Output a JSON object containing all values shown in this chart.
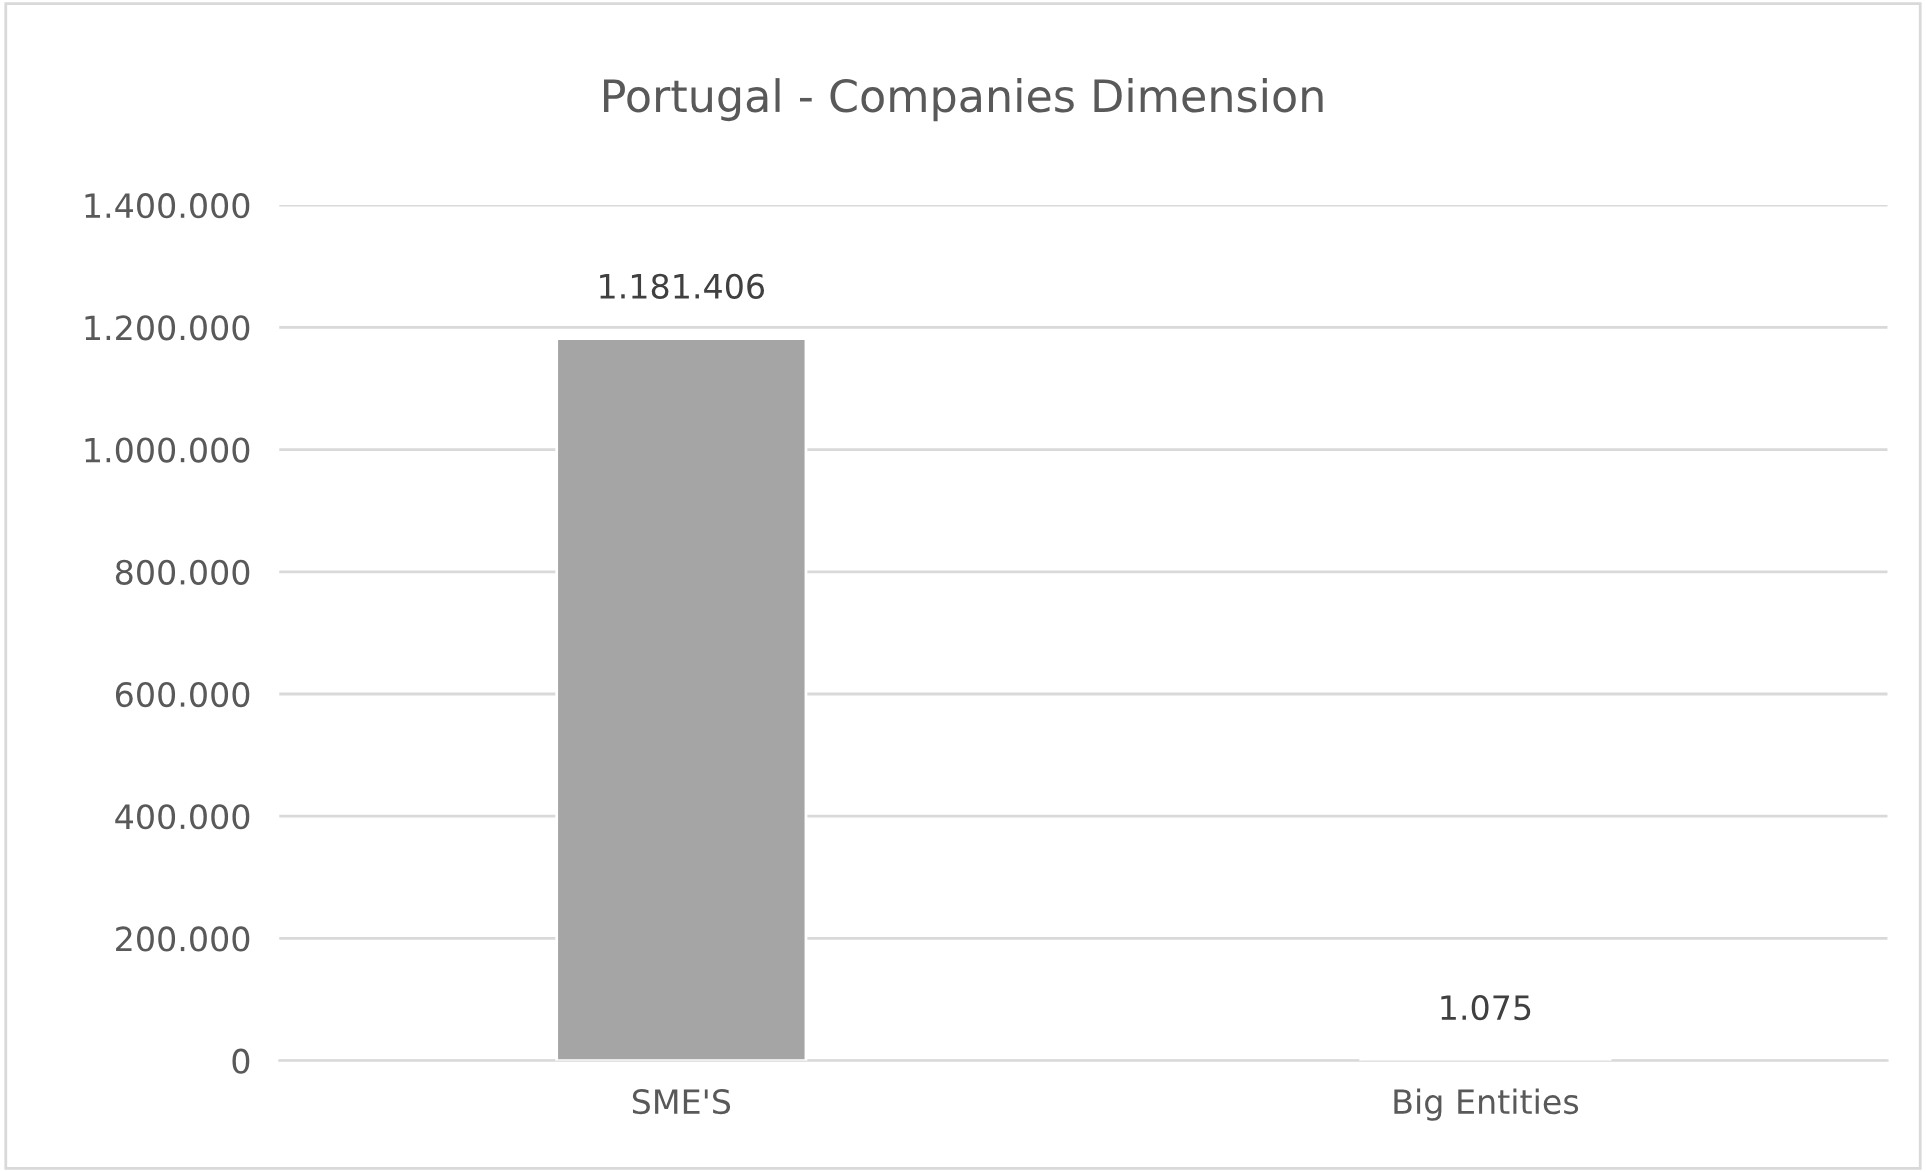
{
  "chart_data": {
    "type": "bar",
    "title": "Portugal - Companies Dimension",
    "categories": [
      "SME'S",
      "Big Entities"
    ],
    "values": [
      1181406,
      1075
    ],
    "value_labels": [
      "1.181.406",
      "1.075"
    ],
    "color": "#a5a5a5",
    "ylim": [
      0,
      1400000
    ],
    "yticks": [
      {
        "value": 0,
        "label": "0"
      },
      {
        "value": 200000,
        "label": "200.000"
      },
      {
        "value": 400000,
        "label": "400.000"
      },
      {
        "value": 600000,
        "label": "600.000"
      },
      {
        "value": 800000,
        "label": "800.000"
      },
      {
        "value": 1000000,
        "label": "1.000.000"
      },
      {
        "value": 1200000,
        "label": "1.200.000"
      },
      {
        "value": 1400000,
        "label": "1.400.000"
      }
    ],
    "grid": "y",
    "legend": false
  }
}
